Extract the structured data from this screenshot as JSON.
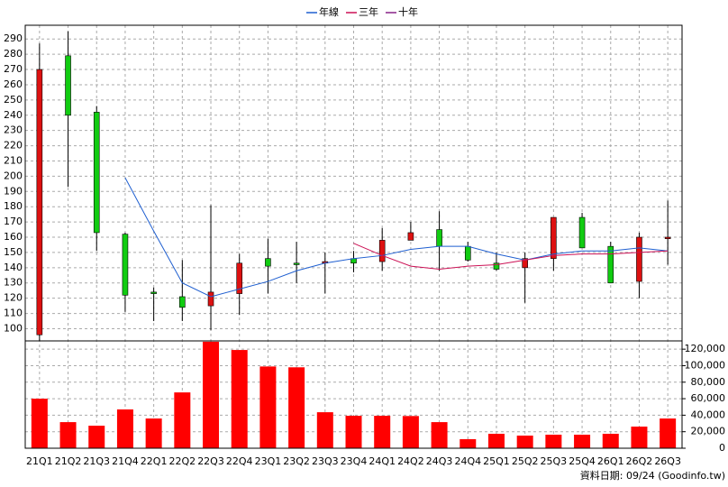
{
  "chart_data": {
    "type": "candlestick",
    "categories": [
      "21Q1",
      "21Q2",
      "21Q3",
      "21Q4",
      "22Q1",
      "22Q2",
      "22Q3",
      "22Q4",
      "23Q1",
      "23Q2",
      "23Q3",
      "23Q4",
      "24Q1",
      "24Q2",
      "24Q3",
      "24Q4",
      "25Q1",
      "25Q2",
      "25Q3",
      "25Q4",
      "26Q1",
      "26Q2",
      "26Q3"
    ],
    "open": [
      96,
      279,
      242,
      162,
      124,
      121,
      115,
      123,
      146,
      143,
      143,
      146,
      144,
      158,
      165,
      154,
      143,
      140,
      146,
      173,
      154,
      131,
      159
    ],
    "high": [
      287,
      295,
      246,
      163,
      127,
      145,
      181,
      149,
      159,
      157,
      150,
      151,
      166,
      170,
      177,
      157,
      150,
      150,
      173,
      176,
      157,
      163,
      184
    ],
    "low": [
      92,
      193,
      151,
      111,
      105,
      105,
      99,
      109,
      123,
      130,
      123,
      137,
      138,
      158,
      138,
      144,
      138,
      117,
      138,
      153,
      130,
      120,
      142
    ],
    "close": [
      270,
      240,
      163,
      122,
      123,
      114,
      124,
      143,
      141,
      142,
      144,
      143,
      158,
      163,
      154,
      145,
      139,
      146,
      173,
      153,
      130,
      160,
      160
    ],
    "up_color": "#dd1111",
    "down_color": "#11cc11",
    "lines": [
      {
        "name": "年線",
        "color": "#1f5fd0",
        "values": [
          null,
          null,
          null,
          199,
          164,
          130,
          121,
          126,
          131,
          138,
          143,
          146,
          148,
          152,
          154,
          154,
          149,
          145,
          149,
          151,
          151,
          153,
          151
        ]
      },
      {
        "name": "三年",
        "color": "#cc1155",
        "values": [
          null,
          null,
          null,
          null,
          null,
          null,
          null,
          null,
          null,
          null,
          null,
          156,
          148,
          141,
          139,
          141,
          142,
          145,
          148,
          149,
          149,
          150,
          151
        ]
      },
      {
        "name": "十年",
        "color": "#882288",
        "values": [
          null,
          null,
          null,
          null,
          null,
          null,
          null,
          null,
          null,
          null,
          null,
          null,
          null,
          null,
          null,
          null,
          null,
          null,
          null,
          null,
          null,
          null,
          null
        ]
      }
    ],
    "ylim": [
      92,
      299
    ],
    "yticks": [
      100,
      110,
      120,
      130,
      140,
      150,
      160,
      170,
      180,
      190,
      200,
      210,
      220,
      230,
      240,
      250,
      260,
      270,
      280,
      290
    ],
    "grid": true,
    "volume": {
      "color": "#ff0000",
      "values": [
        60000,
        31600,
        27300,
        47000,
        36000,
        67600,
        129000,
        119000,
        99000,
        98000,
        43600,
        39300,
        39300,
        39000,
        31600,
        11000,
        17500,
        15300,
        16400,
        16400,
        17500,
        26200,
        36000
      ],
      "ylim": [
        0,
        130000
      ],
      "yticks": [
        0,
        {
          "value": 20000,
          "label": "20,000"
        },
        {
          "value": 40000,
          "label": "40,000"
        },
        {
          "value": 60000,
          "label": "60,000"
        },
        {
          "value": 80000,
          "label": "80,000"
        },
        {
          "value": 100000,
          "label": "100,000"
        },
        {
          "value": 120000,
          "label": "120,000"
        }
      ]
    },
    "note": "資料日期: 09/24  (Goodinfo.tw)"
  }
}
